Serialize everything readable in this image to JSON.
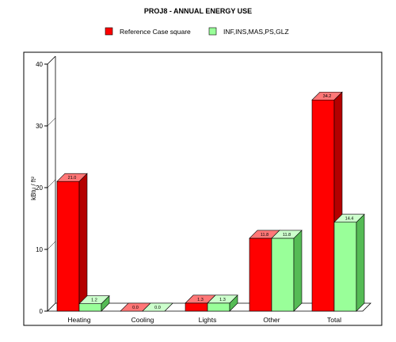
{
  "chart_data": {
    "type": "bar",
    "title": "PROJ8 - ANNUAL ENERGY USE",
    "ylabel": "kBtu / ft²",
    "xlabel": "",
    "ylim": [
      0,
      40
    ],
    "yticks": [
      0,
      10,
      20,
      30,
      40
    ],
    "categories": [
      "Heating",
      "Cooling",
      "Lights",
      "Other",
      "Total"
    ],
    "series": [
      {
        "name": "Reference Case square",
        "values": [
          21.0,
          0.0,
          1.3,
          11.8,
          34.2
        ],
        "labels": [
          "21.0",
          "0.0",
          "1.3",
          "11.8",
          "34.2"
        ],
        "color": "#ff0000",
        "color_top": "#ff7777",
        "color_side": "#b40000"
      },
      {
        "name": "INF,INS,MAS,PS,GLZ",
        "values": [
          1.2,
          0.0,
          1.3,
          11.8,
          14.4
        ],
        "labels": [
          "1.2",
          "0.0",
          "1.3",
          "11.8",
          "14.4"
        ],
        "color": "#99ff99",
        "color_top": "#ccffcc",
        "color_side": "#55bb55"
      }
    ],
    "grid": false,
    "legend_position": "top"
  }
}
